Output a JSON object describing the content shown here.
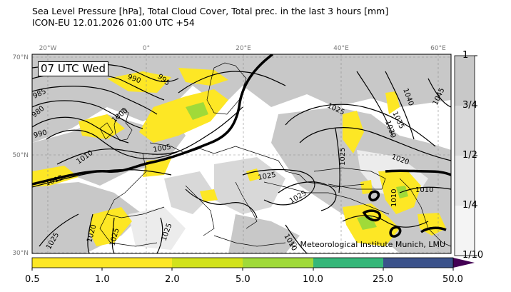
{
  "title": {
    "line1": "Sea Level Pressure [hPa], Total Cloud Cover, Total prec. in the last 3 hours [mm]",
    "line2": "ICON-EU 12.01.2026 01:00 UTC +54"
  },
  "time_label": "07 UTC Wed",
  "credit": "© Meteorological Institute Munich, LMU",
  "axes": {
    "lon_ticks": [
      "20°W",
      "0°",
      "20°E",
      "40°E",
      "60°E"
    ],
    "lat_ticks": [
      "70°N",
      "50°N",
      "30°N"
    ]
  },
  "isobar_labels": [
    "990",
    "995",
    "985",
    "980",
    "990",
    "1000",
    "1005",
    "1010",
    "1015",
    "1025",
    "1035",
    "1030",
    "1040",
    "1045",
    "1020",
    "1025",
    "1025",
    "1025",
    "1010",
    "1010",
    "1020",
    "1025",
    "1025",
    "1010",
    "1025"
  ],
  "precip_colorbar": {
    "labels": [
      "0.5",
      "1.0",
      "2.0",
      "5.0",
      "10.0",
      "25.0",
      "50.0"
    ],
    "colors": [
      "#fde725",
      "#fde725",
      "#d2e21b",
      "#a0da39",
      "#35b779",
      "#31688e",
      "#440154"
    ]
  },
  "cloud_cover_colorbar": {
    "labels": [
      "1",
      "3/4",
      "1/2",
      "1/4",
      "1/10"
    ],
    "colors": [
      "#c8c8c8",
      "#d8d8d8",
      "#e6e6e6",
      "#f4f4f4"
    ]
  },
  "colors": {
    "cloud": "#c8c8c8",
    "land_clear": "#ffffff",
    "precip_light": "#fde725",
    "precip_mid": "#a0da39",
    "isobar": "#000000"
  }
}
